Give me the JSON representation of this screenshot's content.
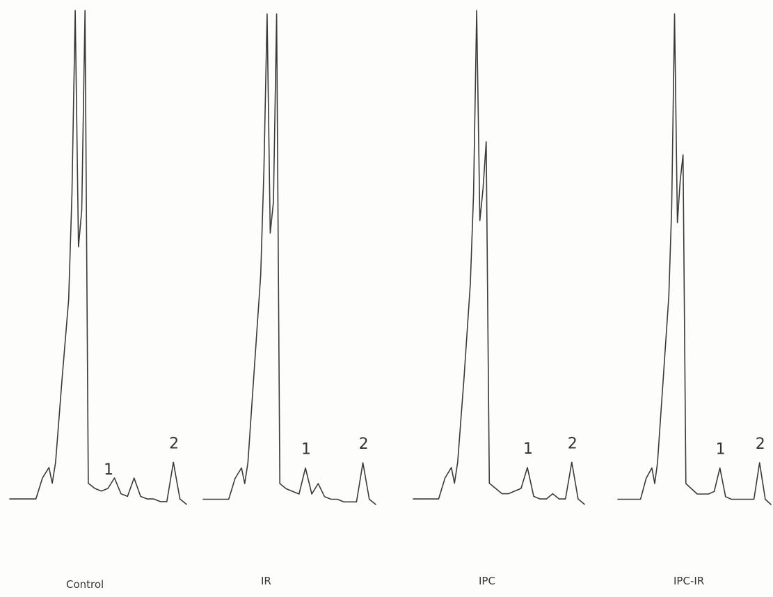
{
  "chart_data": [
    {
      "type": "line",
      "panel": "Control",
      "peak_labels": [
        "1",
        "2"
      ],
      "series": [
        {
          "values": [
            [
              0,
              0.07
            ],
            [
              4,
              0.07
            ],
            [
              5,
              0.11
            ],
            [
              6,
              0.13
            ],
            [
              6.5,
              0.1
            ],
            [
              7,
              0.14
            ],
            [
              8,
              0.3
            ],
            [
              9,
              0.45
            ],
            [
              9.5,
              0.65
            ],
            [
              10,
              1.0
            ],
            [
              10.5,
              0.55
            ],
            [
              11,
              0.62
            ],
            [
              11.5,
              1.0
            ],
            [
              12,
              0.1
            ],
            [
              13,
              0.09
            ],
            [
              14,
              0.085
            ],
            [
              15,
              0.09
            ],
            [
              16,
              0.11
            ],
            [
              17,
              0.08
            ],
            [
              18,
              0.075
            ],
            [
              19,
              0.11
            ],
            [
              20,
              0.075
            ],
            [
              21,
              0.07
            ],
            [
              22,
              0.07
            ],
            [
              23,
              0.065
            ],
            [
              24,
              0.065
            ],
            [
              25,
              0.14
            ],
            [
              26,
              0.07
            ],
            [
              27,
              0.06
            ]
          ]
        }
      ]
    },
    {
      "type": "line",
      "panel": "IR",
      "peak_labels": [
        "1",
        "2"
      ],
      "series": [
        {
          "values": [
            [
              0,
              0.07
            ],
            [
              4,
              0.07
            ],
            [
              5,
              0.11
            ],
            [
              6,
              0.13
            ],
            [
              6.5,
              0.1
            ],
            [
              7,
              0.14
            ],
            [
              8,
              0.32
            ],
            [
              9,
              0.5
            ],
            [
              9.5,
              0.7
            ],
            [
              10,
              1.0
            ],
            [
              10.5,
              0.58
            ],
            [
              11,
              0.64
            ],
            [
              11.5,
              1.0
            ],
            [
              12,
              0.1
            ],
            [
              13,
              0.09
            ],
            [
              14,
              0.085
            ],
            [
              15,
              0.08
            ],
            [
              16,
              0.13
            ],
            [
              17,
              0.08
            ],
            [
              18,
              0.1
            ],
            [
              19,
              0.075
            ],
            [
              20,
              0.07
            ],
            [
              21,
              0.07
            ],
            [
              22,
              0.065
            ],
            [
              23,
              0.065
            ],
            [
              24,
              0.065
            ],
            [
              25,
              0.14
            ],
            [
              26,
              0.07
            ],
            [
              27,
              0.06
            ]
          ]
        }
      ]
    },
    {
      "type": "line",
      "panel": "IPC",
      "peak_labels": [
        "1",
        "2"
      ],
      "series": [
        {
          "values": [
            [
              0,
              0.07
            ],
            [
              4,
              0.07
            ],
            [
              5,
              0.11
            ],
            [
              6,
              0.13
            ],
            [
              6.5,
              0.1
            ],
            [
              7,
              0.14
            ],
            [
              8,
              0.3
            ],
            [
              9,
              0.48
            ],
            [
              9.5,
              0.65
            ],
            [
              10,
              1.0
            ],
            [
              10.5,
              0.6
            ],
            [
              11,
              0.66
            ],
            [
              11.5,
              0.75
            ],
            [
              12,
              0.1
            ],
            [
              13,
              0.09
            ],
            [
              14,
              0.08
            ],
            [
              15,
              0.08
            ],
            [
              16,
              0.085
            ],
            [
              17,
              0.09
            ],
            [
              18,
              0.13
            ],
            [
              19,
              0.075
            ],
            [
              20,
              0.07
            ],
            [
              21,
              0.07
            ],
            [
              22,
              0.08
            ],
            [
              23,
              0.07
            ],
            [
              24,
              0.07
            ],
            [
              25,
              0.14
            ],
            [
              26,
              0.07
            ],
            [
              27,
              0.06
            ]
          ]
        }
      ]
    },
    {
      "type": "line",
      "panel": "IPC-IR",
      "peak_labels": [
        "1",
        "2"
      ],
      "series": [
        {
          "values": [
            [
              0,
              0.07
            ],
            [
              4,
              0.07
            ],
            [
              5,
              0.11
            ],
            [
              6,
              0.13
            ],
            [
              6.5,
              0.1
            ],
            [
              7,
              0.14
            ],
            [
              8,
              0.3
            ],
            [
              9,
              0.46
            ],
            [
              9.5,
              0.63
            ],
            [
              10,
              1.0
            ],
            [
              10.5,
              0.6
            ],
            [
              11,
              0.68
            ],
            [
              11.5,
              0.73
            ],
            [
              12,
              0.1
            ],
            [
              13,
              0.09
            ],
            [
              14,
              0.08
            ],
            [
              15,
              0.08
            ],
            [
              16,
              0.08
            ],
            [
              17,
              0.085
            ],
            [
              18,
              0.13
            ],
            [
              19,
              0.075
            ],
            [
              20,
              0.07
            ],
            [
              21,
              0.07
            ],
            [
              22,
              0.07
            ],
            [
              23,
              0.07
            ],
            [
              24,
              0.07
            ],
            [
              25,
              0.14
            ],
            [
              26,
              0.07
            ],
            [
              27,
              0.06
            ]
          ]
        }
      ]
    }
  ]
}
